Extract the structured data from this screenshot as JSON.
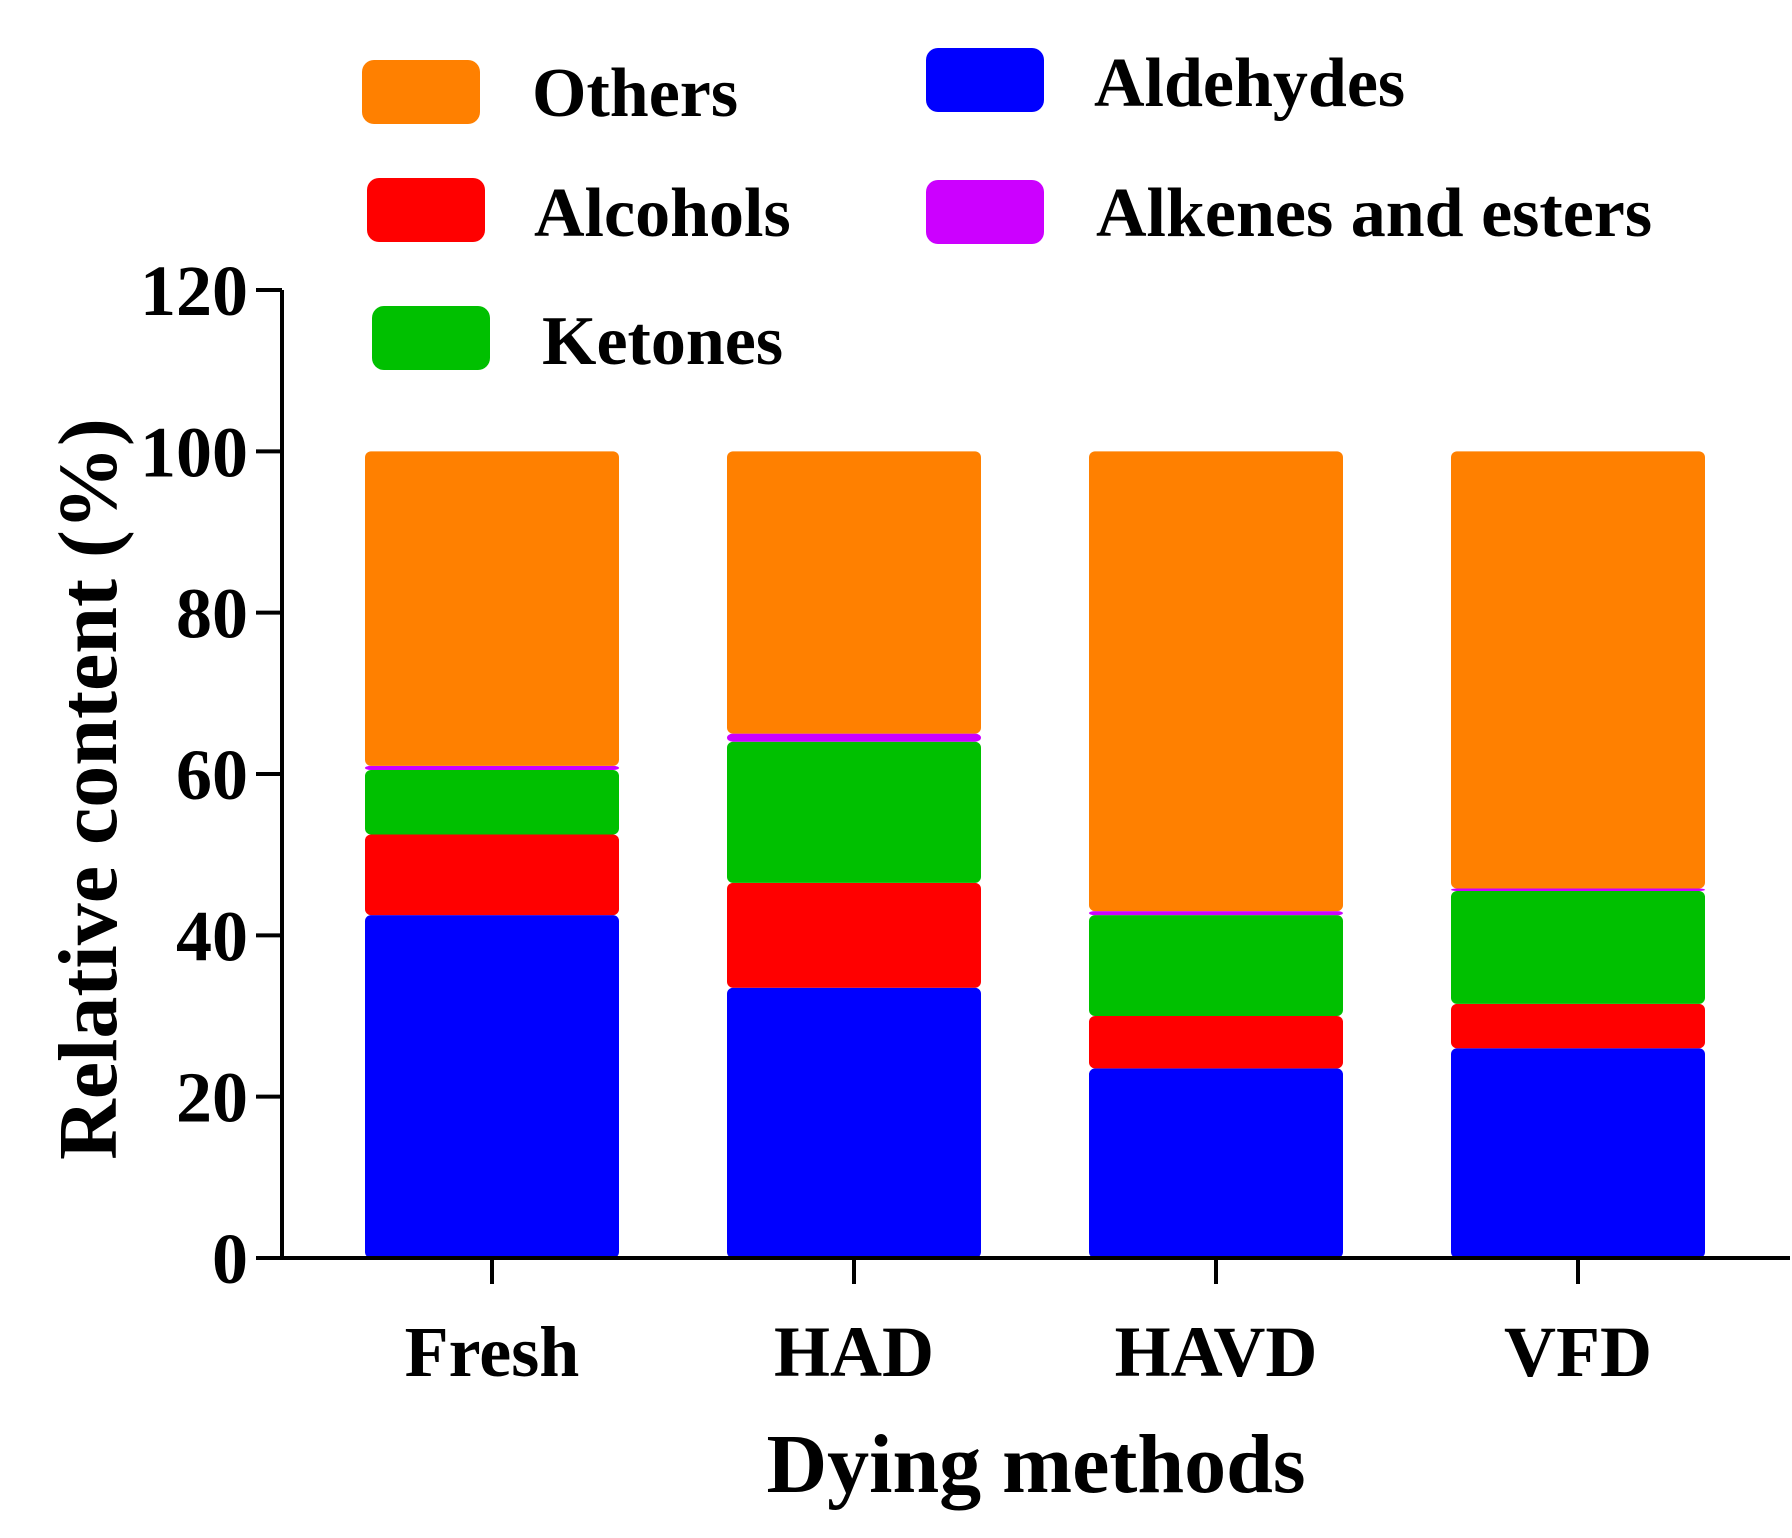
{
  "chart_data": {
    "type": "bar",
    "stacked": true,
    "title": "",
    "xlabel": "Dying methods",
    "ylabel": "Relative content (%)",
    "ylim": [
      0,
      120
    ],
    "yticks": [
      0,
      20,
      40,
      60,
      80,
      100,
      120
    ],
    "grid": false,
    "legend_position": "top-center",
    "categories": [
      "Fresh",
      "HAD",
      "HAVD",
      "VFD"
    ],
    "series": [
      {
        "name": "Aldehydes",
        "color": "#0000FF",
        "values": [
          42.5,
          33.5,
          23.5,
          26.0
        ]
      },
      {
        "name": "Alcohols",
        "color": "#FF0000",
        "values": [
          10.0,
          13.0,
          6.5,
          5.5
        ]
      },
      {
        "name": "Ketones",
        "color": "#00C000",
        "values": [
          8.0,
          17.5,
          12.5,
          14.0
        ]
      },
      {
        "name": "Alkenes and esters",
        "color": "#CC00FF",
        "values": [
          0.5,
          1.0,
          0.5,
          0.3
        ]
      },
      {
        "name": "Others",
        "color": "#FF8000",
        "values": [
          39.0,
          35.0,
          57.0,
          54.2
        ]
      }
    ],
    "legend_order": [
      "Others",
      "Aldehydes",
      "Alcohols",
      "Alkenes and esters",
      "Ketones"
    ]
  }
}
